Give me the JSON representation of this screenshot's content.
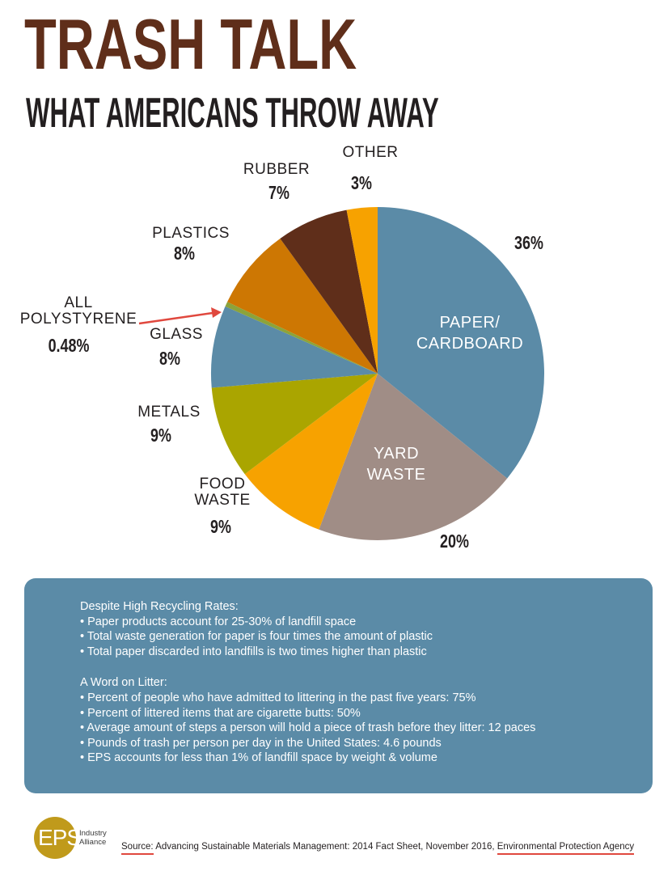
{
  "header": {
    "title": "TRASH TALK",
    "subtitle": "WHAT AMERICANS THROW AWAY"
  },
  "chart_data": {
    "type": "pie",
    "title": "TRASH TALK",
    "subtitle": "WHAT AMERICANS THROW AWAY",
    "slices": [
      {
        "name": "PAPER/ CARDBOARD",
        "label_lines": [
          "PAPER/",
          "CARDBOARD"
        ],
        "value": 36,
        "display_value": "36%",
        "color": "#5b8ba7"
      },
      {
        "name": "YARD WASTE",
        "label_lines": [
          "YARD",
          "WASTE"
        ],
        "value": 20,
        "display_value": "20%",
        "color": "#a08d86"
      },
      {
        "name": "FOOD WASTE",
        "label_lines": [
          "FOOD",
          "WASTE"
        ],
        "value": 9,
        "display_value": "9%",
        "color": "#f7a200"
      },
      {
        "name": "METALS",
        "label_lines": [
          "METALS"
        ],
        "value": 9,
        "display_value": "9%",
        "color": "#aaa500"
      },
      {
        "name": "GLASS",
        "label_lines": [
          "GLASS"
        ],
        "value": 8,
        "display_value": "8%",
        "color": "#5b8ba7"
      },
      {
        "name": "ALL POLYSTYRENE",
        "label_lines": [
          "ALL",
          "POLYSTYRENE"
        ],
        "value": 0.48,
        "display_value": "0.48%",
        "color": "#8ca33a"
      },
      {
        "name": "PLASTICS",
        "label_lines": [
          "PLASTICS"
        ],
        "value": 8,
        "display_value": "8%",
        "color": "#cd7703"
      },
      {
        "name": "RUBBER",
        "label_lines": [
          "RUBBER"
        ],
        "value": 7,
        "display_value": "7%",
        "color": "#5f2e1a"
      },
      {
        "name": "OTHER",
        "label_lines": [
          "OTHER"
        ],
        "value": 3,
        "display_value": "3%",
        "color": "#f7a200"
      }
    ]
  },
  "info": {
    "section1_heading": "Despite High Recycling Rates:",
    "section1_items": [
      "• Paper products account for 25-30% of landfill space",
      "• Total waste generation for paper is four times the amount of plastic",
      "• Total paper discarded into landfills is two times higher than plastic"
    ],
    "section2_heading": "A Word on Litter:",
    "section2_items": [
      "• Percent of people who have admitted to littering in the past five years: 75%",
      "• Percent of littered items that are cigarette butts: 50%",
      "• Average amount of steps a person will hold a piece of trash before they litter: 12 paces",
      "• Pounds of trash per person per day in the United States: 4.6 pounds",
      "• EPS accounts for less than 1% of landfill space by weight & volume"
    ]
  },
  "footer": {
    "logo_text": "EPS",
    "logo_sub_line1": "Industry",
    "logo_sub_line2": "Alliance",
    "source_label": "Source:",
    "source_text": " Advancing Sustainable Materials Management: 2014 Fact Sheet, November 2016, ",
    "source_agency": "Environmental Protection Agency"
  },
  "colors": {
    "title": "#5f2e1a",
    "info_box": "#5b8ba7",
    "pointer_arrow": "#e0483e",
    "logo": "#c09a1b"
  }
}
